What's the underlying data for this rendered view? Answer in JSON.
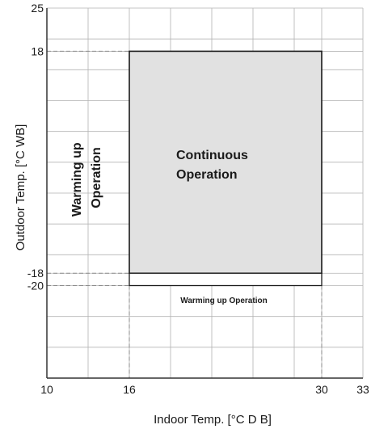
{
  "colors": {
    "grid": "#b3b3b3",
    "axis": "#333333",
    "region_fill": "#e1e1e1",
    "region_stroke": "#1a1a1a",
    "guide": "#8a8a8a",
    "text": "#1a1a1a"
  },
  "chart_data": {
    "type": "operating-range",
    "xlabel": "Indoor Temp. [°C D B]",
    "ylabel": "Outdoor Temp. [°C WB]",
    "xlim": [
      10,
      33
    ],
    "ylim": [
      -35,
      25
    ],
    "x_grid": [
      10,
      13,
      16,
      19,
      22,
      25,
      28,
      30,
      33
    ],
    "y_grid": [
      -30,
      -25,
      -20,
      -18,
      -15,
      -10,
      -5,
      0,
      5,
      10,
      15,
      18,
      20,
      25
    ],
    "x_ticks": [
      {
        "value": 10,
        "label": "10"
      },
      {
        "value": 16,
        "label": "16"
      },
      {
        "value": 30,
        "label": "30"
      },
      {
        "value": 33,
        "label": "33"
      }
    ],
    "y_ticks": [
      {
        "value": 25,
        "label": "25"
      },
      {
        "value": 18,
        "label": "18"
      },
      {
        "value": -18,
        "label": "-18"
      },
      {
        "value": -20,
        "label": "-20"
      }
    ],
    "regions": [
      {
        "name": "continuous",
        "label_lines": [
          "Continuous",
          "Operation"
        ],
        "x": [
          16,
          30
        ],
        "y": [
          -18,
          18
        ],
        "filled": true
      },
      {
        "name": "warming-strip",
        "label_lines": [
          "Warming up Operation"
        ],
        "x": [
          16,
          30
        ],
        "y": [
          -20,
          -18
        ],
        "filled": false
      }
    ],
    "side_label_lines": [
      "Warming up",
      "Operation"
    ],
    "grid": true
  }
}
